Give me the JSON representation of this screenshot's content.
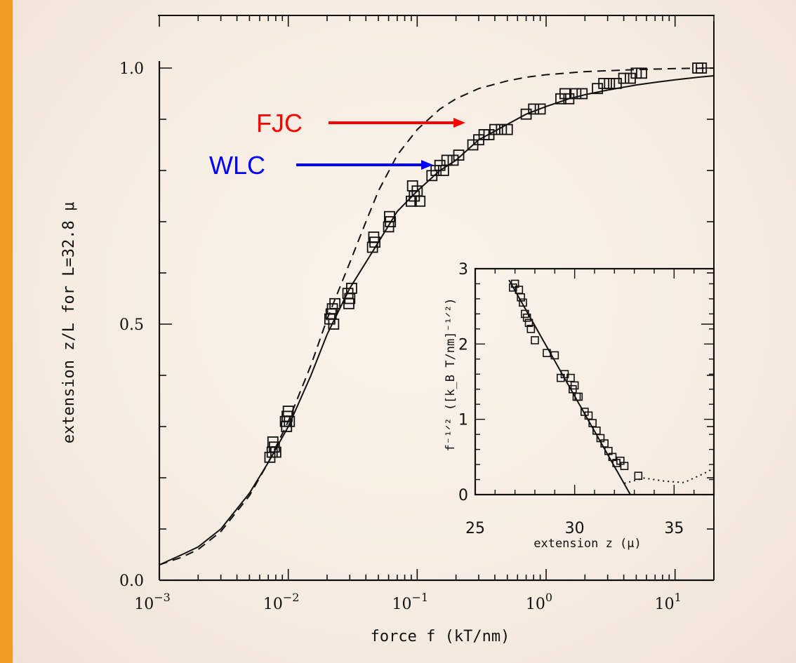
{
  "chart_data": [
    {
      "type": "scatter",
      "xlabel": "force  f  (kT/nm)",
      "ylabel": "extension  z/L  for  L=32.8 μ",
      "xscale": "log",
      "xlim": [
        0.001,
        20
      ],
      "ylim": [
        0.0,
        1.0
      ],
      "x_tick_labels": [
        {
          "value": 0.001,
          "base": "10",
          "exp": "−3"
        },
        {
          "value": 0.01,
          "base": "10",
          "exp": "−2"
        },
        {
          "value": 0.1,
          "base": "10",
          "exp": "−1"
        },
        {
          "value": 1,
          "base": "10",
          "exp": "0"
        },
        {
          "value": 10,
          "base": "10",
          "exp": "1"
        }
      ],
      "y_tick_labels": [
        {
          "value": 0.0,
          "label": "0.0"
        },
        {
          "value": 0.5,
          "label": "0.5"
        },
        {
          "value": 1.0,
          "label": "1.0"
        }
      ],
      "series": [
        {
          "name": "",
          "style": "open squares",
          "points": [
            [
              0.0072,
              0.24
            ],
            [
              0.0075,
              0.25
            ],
            [
              0.0078,
              0.26
            ],
            [
              0.008,
              0.25
            ],
            [
              0.0076,
              0.27
            ],
            [
              0.0095,
              0.31
            ],
            [
              0.0098,
              0.32
            ],
            [
              0.01,
              0.33
            ],
            [
              0.0102,
              0.31
            ],
            [
              0.0097,
              0.3
            ],
            [
              0.021,
              0.51
            ],
            [
              0.022,
              0.53
            ],
            [
              0.023,
              0.54
            ],
            [
              0.0215,
              0.52
            ],
            [
              0.0225,
              0.5
            ],
            [
              0.029,
              0.56
            ],
            [
              0.03,
              0.55
            ],
            [
              0.031,
              0.57
            ],
            [
              0.0295,
              0.54
            ],
            [
              0.045,
              0.65
            ],
            [
              0.047,
              0.66
            ],
            [
              0.046,
              0.67
            ],
            [
              0.06,
              0.69
            ],
            [
              0.062,
              0.7
            ],
            [
              0.061,
              0.71
            ],
            [
              0.09,
              0.74
            ],
            [
              0.095,
              0.75
            ],
            [
              0.1,
              0.76
            ],
            [
              0.105,
              0.74
            ],
            [
              0.092,
              0.77
            ],
            [
              0.13,
              0.79
            ],
            [
              0.14,
              0.8
            ],
            [
              0.15,
              0.81
            ],
            [
              0.16,
              0.8
            ],
            [
              0.17,
              0.82
            ],
            [
              0.19,
              0.82
            ],
            [
              0.21,
              0.83
            ],
            [
              0.27,
              0.85
            ],
            [
              0.3,
              0.86
            ],
            [
              0.33,
              0.87
            ],
            [
              0.36,
              0.87
            ],
            [
              0.4,
              0.88
            ],
            [
              0.45,
              0.88
            ],
            [
              0.5,
              0.88
            ],
            [
              0.7,
              0.91
            ],
            [
              0.8,
              0.92
            ],
            [
              0.9,
              0.92
            ],
            [
              1.3,
              0.94
            ],
            [
              1.4,
              0.95
            ],
            [
              1.5,
              0.94
            ],
            [
              1.7,
              0.95
            ],
            [
              1.9,
              0.95
            ],
            [
              2.5,
              0.96
            ],
            [
              2.8,
              0.97
            ],
            [
              3.1,
              0.97
            ],
            [
              3.5,
              0.97
            ],
            [
              4.0,
              0.98
            ],
            [
              4.5,
              0.98
            ],
            [
              5.0,
              0.99
            ],
            [
              5.5,
              0.99
            ],
            [
              15,
              1.0
            ],
            [
              16,
              1.0
            ]
          ]
        },
        {
          "name": "",
          "style": "solid",
          "points": [
            [
              0.001,
              0.03
            ],
            [
              0.0015,
              0.05
            ],
            [
              0.002,
              0.065
            ],
            [
              0.003,
              0.1
            ],
            [
              0.005,
              0.17
            ],
            [
              0.007,
              0.23
            ],
            [
              0.01,
              0.3
            ],
            [
              0.015,
              0.4
            ],
            [
              0.02,
              0.48
            ],
            [
              0.03,
              0.57
            ],
            [
              0.05,
              0.66
            ],
            [
              0.07,
              0.72
            ],
            [
              0.1,
              0.76
            ],
            [
              0.15,
              0.8
            ],
            [
              0.2,
              0.82
            ],
            [
              0.3,
              0.86
            ],
            [
              0.5,
              0.89
            ],
            [
              0.7,
              0.91
            ],
            [
              1,
              0.925
            ],
            [
              1.5,
              0.94
            ],
            [
              2,
              0.948
            ],
            [
              3,
              0.957
            ],
            [
              5,
              0.967
            ],
            [
              7,
              0.972
            ],
            [
              10,
              0.977
            ],
            [
              15,
              0.982
            ],
            [
              20,
              0.985
            ]
          ]
        },
        {
          "name": "",
          "style": "dashed",
          "points": [
            [
              0.001,
              0.03
            ],
            [
              0.0015,
              0.045
            ],
            [
              0.002,
              0.06
            ],
            [
              0.003,
              0.095
            ],
            [
              0.005,
              0.165
            ],
            [
              0.007,
              0.23
            ],
            [
              0.01,
              0.31
            ],
            [
              0.015,
              0.42
            ],
            [
              0.02,
              0.51
            ],
            [
              0.03,
              0.62
            ],
            [
              0.04,
              0.7
            ],
            [
              0.05,
              0.76
            ],
            [
              0.07,
              0.83
            ],
            [
              0.1,
              0.88
            ],
            [
              0.15,
              0.92
            ],
            [
              0.2,
              0.94
            ],
            [
              0.3,
              0.96
            ],
            [
              0.5,
              0.975
            ],
            [
              0.7,
              0.982
            ],
            [
              1,
              0.987
            ],
            [
              2,
              0.993
            ],
            [
              5,
              0.997
            ],
            [
              10,
              0.999
            ],
            [
              20,
              1.0
            ]
          ]
        }
      ],
      "annotations": [
        {
          "text": "FJC",
          "color": "#ff0000"
        },
        {
          "text": "WLC",
          "color": "#0000ff"
        }
      ]
    },
    {
      "type": "scatter",
      "xlabel": "extension z  (μ)",
      "ylabel": "f⁻¹ᐟ²  ([k_B T/nm]⁻¹ᐟ²)",
      "xlim": [
        25,
        37
      ],
      "ylim": [
        0,
        3
      ],
      "x_tick_labels": [
        {
          "value": 25,
          "label": "25"
        },
        {
          "value": 30,
          "label": "30"
        },
        {
          "value": 35,
          "label": "35"
        }
      ],
      "y_tick_labels": [
        {
          "value": 0,
          "label": "0"
        },
        {
          "value": 1,
          "label": "1"
        },
        {
          "value": 2,
          "label": "2"
        },
        {
          "value": 3,
          "label": "3"
        }
      ],
      "series": [
        {
          "name": "",
          "style": "open squares",
          "points": [
            [
              26.9,
              2.75
            ],
            [
              27.0,
              2.8
            ],
            [
              27.2,
              2.72
            ],
            [
              27.3,
              2.62
            ],
            [
              27.4,
              2.55
            ],
            [
              27.5,
              2.4
            ],
            [
              27.6,
              2.35
            ],
            [
              27.7,
              2.28
            ],
            [
              27.8,
              2.2
            ],
            [
              28.0,
              2.05
            ],
            [
              28.6,
              1.88
            ],
            [
              29.0,
              1.85
            ],
            [
              29.3,
              1.55
            ],
            [
              29.5,
              1.6
            ],
            [
              29.8,
              1.55
            ],
            [
              29.9,
              1.4
            ],
            [
              30.0,
              1.45
            ],
            [
              30.1,
              1.3
            ],
            [
              30.2,
              1.3
            ],
            [
              30.5,
              1.1
            ],
            [
              30.7,
              1.05
            ],
            [
              30.9,
              0.95
            ],
            [
              31.1,
              0.85
            ],
            [
              31.3,
              0.75
            ],
            [
              31.5,
              0.68
            ],
            [
              31.7,
              0.58
            ],
            [
              31.9,
              0.5
            ],
            [
              32.1,
              0.42
            ],
            [
              32.3,
              0.45
            ],
            [
              32.5,
              0.38
            ],
            [
              33.2,
              0.25
            ]
          ]
        },
        {
          "name": "",
          "style": "solid",
          "points": [
            [
              26.7,
              2.85
            ],
            [
              32.8,
              0.0
            ]
          ]
        },
        {
          "name": "",
          "style": "dotted",
          "points": [
            [
              32.5,
              0.15
            ],
            [
              33.5,
              0.22
            ],
            [
              34.5,
              0.18
            ],
            [
              35.5,
              0.16
            ],
            [
              36.5,
              0.28
            ],
            [
              37,
              0.35
            ]
          ]
        }
      ]
    }
  ]
}
